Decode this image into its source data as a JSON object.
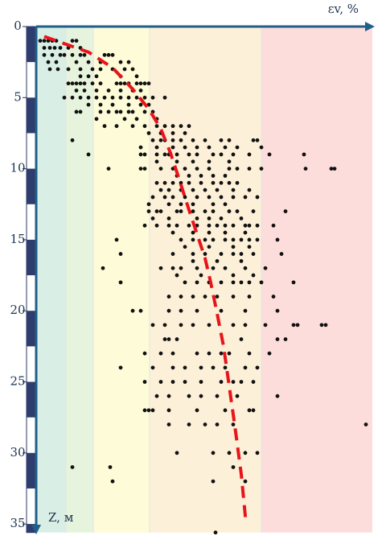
{
  "chart_data": {
    "type": "scatter",
    "x_label": "εv, %",
    "y_label": "Z, м",
    "xlim": [
      0,
      41.8
    ],
    "ylim": [
      0,
      35.6
    ],
    "yticks": [
      0,
      5,
      10,
      15,
      20,
      25,
      30,
      35
    ],
    "y_inverted": true,
    "bands": [
      {
        "from": 0,
        "to": 3.7,
        "color": "#d9efe5"
      },
      {
        "from": 3.7,
        "to": 7.1,
        "color": "#e7f4dd"
      },
      {
        "from": 7.1,
        "to": 14.1,
        "color": "#fdfbd8"
      },
      {
        "from": 14.1,
        "to": 28,
        "color": "#fdf0d8"
      },
      {
        "from": 28,
        "to": 41.8,
        "color": "#fddcdc"
      }
    ],
    "series": [
      {
        "type": "scatter",
        "color": "#111111",
        "x": [
          0.5,
          1,
          1.5,
          2,
          2.5,
          4.5,
          5,
          1,
          1.7,
          2.3,
          3,
          4,
          5.5,
          1,
          2,
          3,
          3.5,
          4.5,
          5.5,
          6,
          8.5,
          9,
          9.5,
          1.5,
          2.5,
          5,
          6.5,
          8,
          10.5,
          11.5,
          1.7,
          2.7,
          4,
          5.5,
          7,
          8,
          9.5,
          11,
          12,
          5.5,
          6.5,
          7.5,
          10.5,
          12.5,
          4,
          4.5,
          5,
          5.5,
          6,
          7,
          8,
          10,
          10.5,
          11,
          11.5,
          12.5,
          13,
          13.5,
          14,
          5,
          6,
          7.5,
          9,
          10.5,
          12,
          13,
          3.5,
          4.5,
          5.5,
          6.5,
          7.5,
          8.5,
          9.5,
          10.5,
          11.5,
          12.5,
          13.5,
          14.5,
          16,
          6.5,
          8,
          9.5,
          11.5,
          13,
          14,
          5,
          5.5,
          8,
          9,
          10,
          10.5,
          11.5,
          12,
          13.5,
          14.5,
          7.5,
          11,
          12.5,
          15,
          8.5,
          10,
          12,
          13.5,
          15,
          16,
          17,
          18,
          19,
          14,
          15.5,
          17,
          18.5,
          4.5,
          14.5,
          15.5,
          16,
          17,
          18,
          19.5,
          21,
          23,
          24,
          27,
          27.5,
          13,
          15,
          17,
          18.5,
          20,
          21.5,
          23.5,
          25,
          28,
          6.5,
          13,
          13.5,
          15,
          16,
          16.5,
          17.5,
          19,
          20,
          22,
          23,
          24.5,
          26.5,
          29,
          33.3,
          15,
          17.5,
          19.5,
          21.5,
          24,
          9,
          13,
          13.5,
          15.5,
          17,
          18.5,
          20,
          21.5,
          24,
          25,
          26.5,
          28,
          33.5,
          36.7,
          37.1,
          17.5,
          19,
          20.5,
          22,
          23.5,
          15,
          16,
          17,
          18,
          19,
          20.5,
          22,
          23,
          24,
          25,
          15.5,
          16.5,
          18,
          19.5,
          21,
          22.5,
          24.5,
          26.5,
          14.5,
          16,
          17,
          18.5,
          20,
          21.5,
          23,
          24.5,
          26,
          27.5,
          14,
          16.5,
          18,
          19.5,
          22,
          23.5,
          14,
          15,
          15.5,
          17.5,
          18,
          19.5,
          21,
          22,
          24,
          25,
          27,
          31,
          14.5,
          16.5,
          20,
          21.5,
          23,
          25.5,
          13.5,
          15,
          16.5,
          17.5,
          19,
          20,
          21.5,
          22.5,
          23.5,
          24.5,
          26,
          26.5,
          27.5,
          29.5,
          17,
          19.5,
          21.5,
          23.5,
          26,
          10,
          18,
          19.5,
          21,
          22,
          23.5,
          24.5,
          25.5,
          26.5,
          27.5,
          30,
          18.5,
          21.5,
          24.5,
          26.5,
          10.5,
          17,
          19.5,
          21,
          23,
          24.5,
          25.5,
          27,
          30.5,
          19.5,
          22.5,
          25.5,
          8.3,
          15.5,
          17,
          18,
          20,
          22,
          23.5,
          26,
          28.5,
          17.5,
          20.5,
          24.5,
          27,
          10.5,
          18.5,
          20,
          21.5,
          23,
          24.5,
          25.5,
          26.5,
          28,
          32,
          16.5,
          18,
          19.5,
          21,
          22.5,
          24.5,
          26.5,
          29.5,
          12,
          13,
          16.5,
          18,
          20,
          23,
          26,
          30,
          14.5,
          16,
          18,
          19.5,
          21.5,
          24.5,
          26,
          28.5,
          32,
          32.5,
          35.5,
          36,
          16,
          16.5,
          17.5,
          25.5,
          30,
          31,
          13.5,
          15.5,
          17,
          20,
          21.5,
          23,
          24,
          26.5,
          29,
          10.5,
          14.5,
          17,
          18.5,
          20.5,
          22,
          23.5,
          26,
          27.5,
          13.5,
          15.5,
          17,
          18.5,
          20.5,
          23,
          24.5,
          25.5,
          27,
          15,
          16.5,
          19,
          20.5,
          22.5,
          25,
          30,
          13.5,
          14,
          14.5,
          16.5,
          20,
          23.5,
          26.5,
          27,
          16.5,
          19,
          21,
          22.5,
          24.5,
          41,
          17.5,
          22,
          24,
          26,
          27.5,
          4.5,
          9.2,
          24.5,
          9.5,
          22,
          26,
          22.3
        ],
        "values": [
          1,
          1,
          1,
          1,
          1,
          1,
          1,
          1.5,
          1.5,
          1.5,
          1.5,
          1.5,
          1.5,
          2,
          2,
          2,
          2,
          2,
          2,
          2,
          2,
          2,
          2,
          2.5,
          2.5,
          2.5,
          2.5,
          2.5,
          2.5,
          2.5,
          3,
          3,
          3,
          3,
          3,
          3,
          3,
          3,
          3,
          3.5,
          3.5,
          3.5,
          3.5,
          3.5,
          4,
          4,
          4,
          4,
          4,
          4,
          4,
          4,
          4,
          4,
          4,
          4,
          4,
          4,
          4,
          4.5,
          4.5,
          4.5,
          4.5,
          4.5,
          4.5,
          4.5,
          5,
          5,
          5,
          5,
          5,
          5,
          5,
          5,
          5,
          5,
          5,
          5,
          5,
          5.5,
          5.5,
          5.5,
          5.5,
          5.5,
          5.5,
          6,
          6,
          6,
          6,
          6,
          6,
          6,
          6,
          6,
          6,
          6.5,
          6.5,
          6.5,
          6.5,
          7,
          7,
          7,
          7,
          7,
          7,
          7,
          7,
          7,
          7.5,
          7.5,
          7.5,
          7.5,
          8,
          8,
          8,
          8,
          8,
          8,
          8,
          8,
          8,
          8,
          8,
          8,
          8.5,
          8.5,
          8.5,
          8.5,
          8.5,
          8.5,
          8.5,
          8.5,
          8.5,
          9,
          9,
          9,
          9,
          9,
          9,
          9,
          9,
          9,
          9,
          9,
          9,
          9,
          9,
          9,
          9.5,
          9.5,
          9.5,
          9.5,
          9.5,
          10,
          10,
          10,
          10,
          10,
          10,
          10,
          10,
          10,
          10,
          10,
          10,
          10,
          10,
          10,
          10.5,
          10.5,
          10.5,
          10.5,
          10.5,
          11,
          11,
          11,
          11,
          11,
          11,
          11,
          11,
          11,
          11,
          11.5,
          11.5,
          11.5,
          11.5,
          11.5,
          11.5,
          11.5,
          11.5,
          12,
          12,
          12,
          12,
          12,
          12,
          12,
          12,
          12,
          12,
          12.5,
          12.5,
          12.5,
          12.5,
          12.5,
          12.5,
          13,
          13,
          13,
          13,
          13,
          13,
          13,
          13,
          13,
          13,
          13,
          13,
          13.5,
          13.5,
          13.5,
          13.5,
          13.5,
          13.5,
          14,
          14,
          14,
          14,
          14,
          14,
          14,
          14,
          14,
          14,
          14,
          14,
          14,
          14,
          14.5,
          14.5,
          14.5,
          14.5,
          14.5,
          15,
          15,
          15,
          15,
          15,
          15,
          15,
          15,
          15,
          15,
          15,
          15.5,
          15.5,
          15.5,
          15.5,
          16,
          16,
          16,
          16,
          16,
          16,
          16,
          16,
          16,
          16.5,
          16.5,
          16.5,
          17,
          17,
          17,
          17,
          17,
          17,
          17,
          17,
          17,
          17.5,
          17.5,
          17.5,
          17.5,
          18,
          18,
          18,
          18,
          18,
          18,
          18,
          18,
          18,
          18,
          19,
          19,
          19,
          19,
          19,
          19,
          19,
          19,
          20,
          20,
          20,
          20,
          20,
          20,
          20,
          20,
          21,
          21,
          21,
          21,
          21,
          21,
          21,
          21,
          21,
          21,
          21,
          21,
          22,
          22,
          22,
          22,
          22,
          22,
          23,
          23,
          23,
          23,
          23,
          23,
          23,
          23,
          23,
          24,
          24,
          24,
          24,
          24,
          24,
          24,
          24,
          24,
          25,
          25,
          25,
          25,
          25,
          25,
          25,
          25,
          25,
          26,
          26,
          26,
          26,
          26,
          26,
          26,
          27,
          27,
          27,
          27,
          27,
          27,
          27,
          27,
          28,
          28,
          28,
          28,
          28,
          28,
          30,
          30,
          30,
          30,
          30,
          31,
          31,
          31,
          32,
          32,
          32,
          35.6
        ]
      },
      {
        "type": "line",
        "color": "#e8141b",
        "dashed": true,
        "x": [
          1,
          3.5,
          6.5,
          9.5,
          12,
          14,
          15.5,
          16.7,
          17.7,
          19,
          20,
          21,
          21.7,
          22.5,
          23.3,
          24,
          24.7,
          25.5,
          26.1
        ],
        "values": [
          0.7,
          1.2,
          1.8,
          2.9,
          4.4,
          5.8,
          7.2,
          8.9,
          10.6,
          12.9,
          14.6,
          16.3,
          18,
          20.2,
          22.5,
          25.3,
          28.1,
          31.5,
          35
        ]
      }
    ]
  }
}
